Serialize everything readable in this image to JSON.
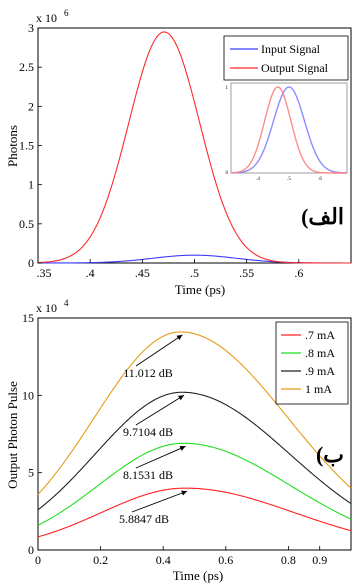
{
  "chart_data": [
    {
      "type": "line",
      "panel_label": "(الف",
      "ylabel": "Photons",
      "xlabel": "Time (ps)",
      "y_multiplier": "x 10",
      "y_exponent": "6",
      "xlim": [
        0.35,
        0.65
      ],
      "ylim": [
        0,
        3
      ],
      "x_ticks": [
        0.35,
        0.4,
        0.45,
        0.5,
        0.55,
        0.6
      ],
      "x_tick_labels": [
        ".35",
        ".4",
        ".45",
        ".5",
        ".55",
        ".6"
      ],
      "y_ticks": [
        0,
        0.5,
        1,
        1.5,
        2,
        2.5,
        3
      ],
      "y_tick_labels": [
        "0",
        "0.5",
        "1",
        "1.5",
        "2",
        "2.5",
        "3"
      ],
      "legend_position": "top-right",
      "series": [
        {
          "name": "Input Signal",
          "color": "#3a3aff",
          "peak_x": 0.5,
          "peak_y": 0.1,
          "width": 0.04
        },
        {
          "name": "Output Signal",
          "color": "#ff2a2a",
          "peak_x": 0.471,
          "peak_y": 2.95,
          "width": 0.034
        }
      ],
      "inset": {
        "xlim": [
          0.35,
          0.65
        ],
        "ylim": [
          0,
          1
        ],
        "x_tick_labels": [
          ".4",
          ".5",
          ".6"
        ],
        "y_tick_labels": [
          "0",
          "1"
        ],
        "series": [
          {
            "name": "Input Signal",
            "color": "#7f7fff",
            "peak_x": 0.5,
            "peak_y": 1,
            "width": 0.04
          },
          {
            "name": "Output Signal",
            "color": "#ff8080",
            "peak_x": 0.471,
            "peak_y": 1,
            "width": 0.034
          }
        ]
      }
    },
    {
      "type": "line",
      "panel_label": "(ب",
      "ylabel": "Output Photon Pulse",
      "xlabel": "Time (ps)",
      "y_multiplier": "x 10",
      "y_exponent": "4",
      "xlim": [
        0,
        1
      ],
      "ylim": [
        0,
        15
      ],
      "x_ticks": [
        0,
        0.2,
        0.4,
        0.6,
        0.8,
        0.9
      ],
      "x_tick_labels": [
        "0",
        "0.2",
        "0.4",
        "0.6",
        "0.8",
        "0.9"
      ],
      "y_ticks": [
        0,
        5,
        10,
        15
      ],
      "y_tick_labels": [
        "0",
        "5",
        "10",
        "15"
      ],
      "legend_position": "top-right",
      "series": [
        {
          "name": ".7 mA",
          "color": "#ff2020",
          "peak_x": 0.47,
          "peak_y": 4.0,
          "y_start": 0.85,
          "y_end": 1.25,
          "annotation": "5.8847 dB"
        },
        {
          "name": ".8 mA",
          "color": "#22dd22",
          "peak_x": 0.465,
          "peak_y": 6.9,
          "y_start": 1.6,
          "y_end": 2.0,
          "annotation": "8.1531 dB"
        },
        {
          "name": ".9 mA",
          "color": "#222222",
          "peak_x": 0.46,
          "peak_y": 10.2,
          "y_start": 2.6,
          "y_end": 3.0,
          "annotation": "9.7104 dB"
        },
        {
          "name": "1 mA",
          "color": "#e89a1a",
          "peak_x": 0.455,
          "peak_y": 14.1,
          "y_start": 3.6,
          "y_end": 4.0,
          "annotation": "11.012 dB"
        }
      ]
    }
  ]
}
